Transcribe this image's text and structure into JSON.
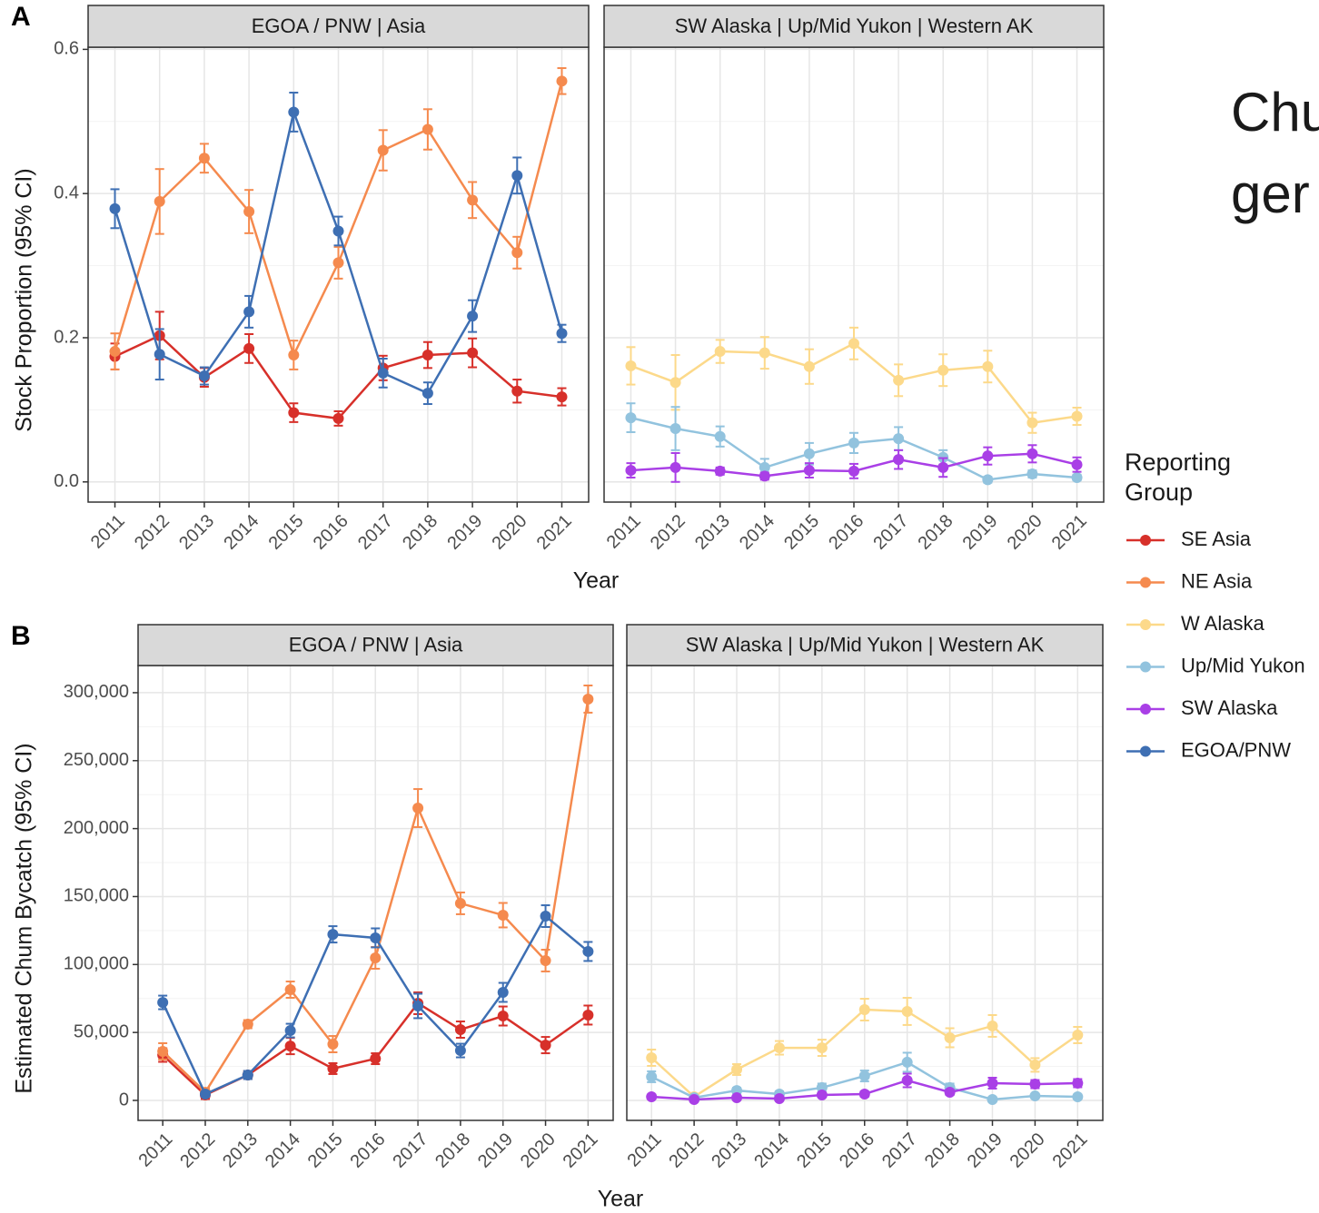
{
  "chart_data": [
    {
      "type": "line",
      "panel_label": "A",
      "strip": "EGOA / PNW | Asia",
      "xlabel": "Year",
      "ylabel": "Stock Proportion (95% CI)",
      "x": [
        2011,
        2012,
        2013,
        2014,
        2015,
        2016,
        2017,
        2018,
        2019,
        2020,
        2021
      ],
      "xlim": [
        2010.4,
        2021.6
      ],
      "ylim": [
        -0.028,
        0.603
      ],
      "yticks": [
        {
          "value": 0,
          "label": "0.0"
        },
        0.2,
        0.4,
        0.6
      ],
      "grid": true,
      "series": [
        {
          "name": "SE Asia",
          "color": "#d7302a",
          "values": [
            0.174,
            0.203,
            0.145,
            0.185,
            0.096,
            0.088,
            0.158,
            0.176,
            0.179,
            0.126,
            0.118
          ],
          "errors": [
            0.018,
            0.033,
            0.013,
            0.02,
            0.013,
            0.01,
            0.017,
            0.018,
            0.02,
            0.016,
            0.012
          ]
        },
        {
          "name": "NE Asia",
          "color": "#f58a4e",
          "values": [
            0.181,
            0.389,
            0.449,
            0.375,
            0.176,
            0.304,
            0.46,
            0.489,
            0.391,
            0.318,
            0.556
          ],
          "errors": [
            0.025,
            0.045,
            0.02,
            0.03,
            0.02,
            0.022,
            0.028,
            0.028,
            0.025,
            0.022,
            0.018
          ]
        },
        {
          "name": "EGOA/PNW",
          "color": "#3e6fb3",
          "values": [
            0.379,
            0.177,
            0.147,
            0.236,
            0.513,
            0.348,
            0.151,
            0.123,
            0.23,
            0.425,
            0.206
          ],
          "errors": [
            0.027,
            0.035,
            0.012,
            0.022,
            0.027,
            0.02,
            0.02,
            0.015,
            0.022,
            0.025,
            0.012
          ]
        }
      ]
    },
    {
      "type": "line",
      "strip": "SW Alaska | Up/Mid Yukon | Western AK",
      "x": [
        2011,
        2012,
        2013,
        2014,
        2015,
        2016,
        2017,
        2018,
        2019,
        2020,
        2021
      ],
      "xlim": [
        2010.4,
        2021.6
      ],
      "ylim": [
        -0.028,
        0.603
      ],
      "yticks": [
        0,
        0.2,
        0.4,
        0.6
      ],
      "show_ytick_labels": false,
      "grid": true,
      "series": [
        {
          "name": "W Alaska",
          "color": "#fcd98a",
          "values": [
            0.161,
            0.138,
            0.181,
            0.179,
            0.16,
            0.192,
            0.141,
            0.155,
            0.16,
            0.082,
            0.091
          ],
          "errors": [
            0.026,
            0.038,
            0.016,
            0.022,
            0.024,
            0.022,
            0.022,
            0.022,
            0.022,
            0.014,
            0.012
          ]
        },
        {
          "name": "Up/Mid Yukon",
          "color": "#92c3de",
          "values": [
            0.089,
            0.074,
            0.063,
            0.02,
            0.039,
            0.054,
            0.06,
            0.034,
            0.003,
            0.011,
            0.006
          ],
          "errors": [
            0.02,
            0.03,
            0.014,
            0.012,
            0.015,
            0.014,
            0.016,
            0.01,
            0.004,
            0.005,
            0.004
          ]
        },
        {
          "name": "SW Alaska",
          "color": "#a93fe6",
          "values": [
            0.016,
            0.02,
            0.015,
            0.008,
            0.016,
            0.015,
            0.031,
            0.02,
            0.036,
            0.039,
            0.024
          ],
          "errors": [
            0.01,
            0.02,
            0.005,
            0.005,
            0.01,
            0.01,
            0.013,
            0.013,
            0.012,
            0.012,
            0.01
          ]
        }
      ]
    },
    {
      "type": "line",
      "panel_label": "B",
      "strip": "EGOA / PNW | Asia",
      "xlabel": "Year",
      "ylabel": "Estimated Chum Bycatch (95% CI)",
      "x": [
        2011,
        2012,
        2013,
        2014,
        2015,
        2016,
        2017,
        2018,
        2019,
        2020,
        2021
      ],
      "xlim": [
        2010.42,
        2021.59
      ],
      "ylim": [
        -14700,
        320000
      ],
      "yticks": [
        0,
        {
          "value": 50000,
          "label": "50,000"
        },
        {
          "value": 100000,
          "label": "100,000"
        },
        {
          "value": 150000,
          "label": "150,000"
        },
        {
          "value": 200000,
          "label": "200,000"
        },
        {
          "value": 250000,
          "label": "250,000"
        },
        {
          "value": 300000,
          "label": "300,000"
        }
      ],
      "grid": true,
      "series": [
        {
          "name": "SE Asia",
          "color": "#d7302a",
          "values": [
            33400,
            4000,
            18700,
            40000,
            23400,
            30700,
            71500,
            52100,
            62100,
            40700,
            62800
          ],
          "errors": [
            5000,
            3000,
            3000,
            6000,
            4000,
            4000,
            8000,
            6000,
            7000,
            6000,
            7000
          ]
        },
        {
          "name": "NE Asia",
          "color": "#f58a4e",
          "values": [
            36100,
            6000,
            56100,
            81500,
            41400,
            104900,
            215100,
            145000,
            136300,
            102900,
            295300
          ],
          "errors": [
            6000,
            3000,
            3000,
            6000,
            6000,
            8000,
            14000,
            8000,
            9000,
            8000,
            10000
          ]
        },
        {
          "name": "EGOA/PNW",
          "color": "#3e6fb3",
          "values": [
            72100,
            4700,
            18700,
            51400,
            122200,
            119600,
            69500,
            36700,
            79500,
            135600,
            109600
          ],
          "errors": [
            5000,
            2000,
            3000,
            5000,
            6000,
            7000,
            9000,
            5000,
            7000,
            8000,
            7000
          ]
        }
      ]
    },
    {
      "type": "line",
      "strip": "SW Alaska | Up/Mid Yukon | Western AK",
      "x": [
        2011,
        2012,
        2013,
        2014,
        2015,
        2016,
        2017,
        2018,
        2019,
        2020,
        2021
      ],
      "xlim": [
        2010.42,
        2021.59
      ],
      "ylim": [
        -14700,
        320000
      ],
      "yticks": [
        0,
        50000,
        100000,
        150000,
        200000,
        250000,
        300000
      ],
      "show_ytick_labels": false,
      "grid": true,
      "series": [
        {
          "name": "W Alaska",
          "color": "#fcd98a",
          "values": [
            31400,
            2700,
            22700,
            38700,
            38700,
            66800,
            65500,
            46100,
            54800,
            26100,
            48100
          ],
          "errors": [
            6000,
            2000,
            4000,
            5000,
            6000,
            8000,
            10000,
            7000,
            8000,
            5000,
            6000
          ]
        },
        {
          "name": "Up/Mid Yukon",
          "color": "#92c3de",
          "values": [
            17400,
            2000,
            7300,
            4700,
            9400,
            18000,
            28100,
            9400,
            700,
            3300,
            2700
          ],
          "errors": [
            4000,
            1000,
            2000,
            2000,
            3000,
            4000,
            7000,
            3000,
            1000,
            1000,
            1000
          ]
        },
        {
          "name": "SW Alaska",
          "color": "#a93fe6",
          "values": [
            2700,
            700,
            2000,
            1300,
            4000,
            4700,
            14700,
            6000,
            12700,
            12000,
            12700
          ],
          "errors": [
            1500,
            500,
            1000,
            1000,
            1500,
            2000,
            5000,
            2000,
            4000,
            3000,
            3000
          ]
        }
      ]
    }
  ],
  "legend_title": "Reporting Group",
  "cropped_text": [
    "Chu",
    "ger"
  ]
}
